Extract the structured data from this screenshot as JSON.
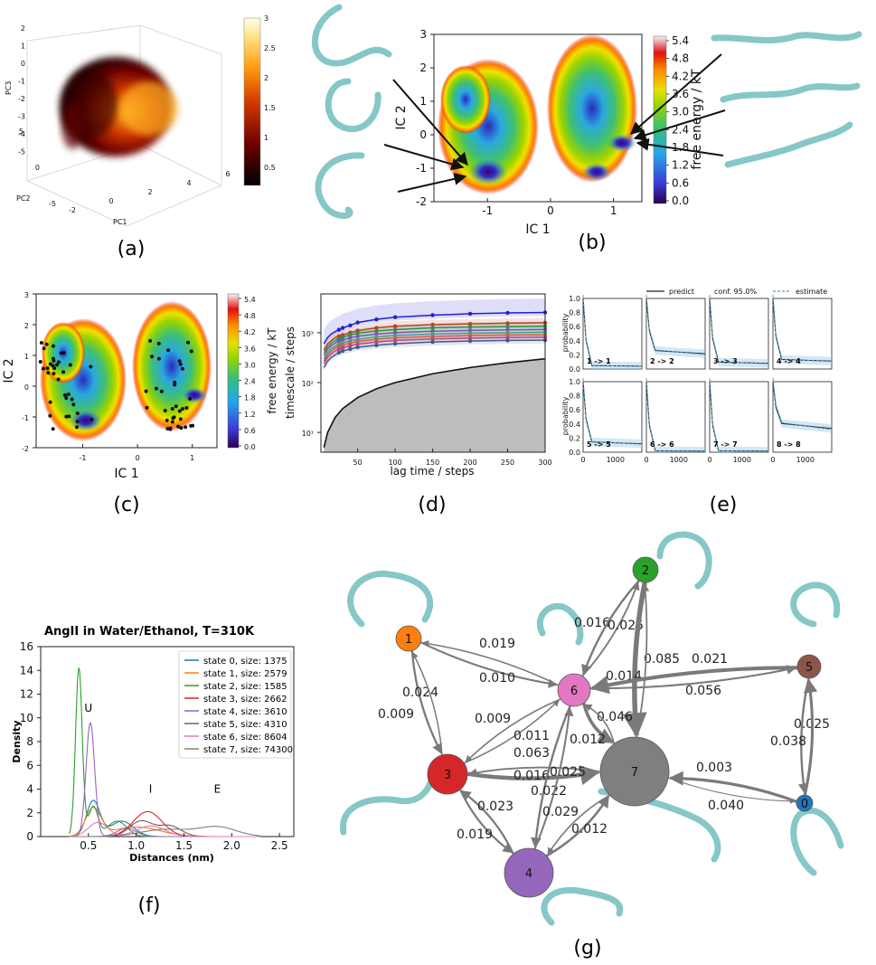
{
  "panel_labels": [
    "(a)",
    "(b)",
    "(c)",
    "(d)",
    "(e)",
    "(f)",
    "(g)"
  ],
  "colors": {
    "fes_scale": [
      "#2a0050",
      "#3b3bd8",
      "#22a7e8",
      "#35c07a",
      "#93d400",
      "#e8e000",
      "#ff8a00",
      "#e01010",
      "#ffffff"
    ],
    "afmhot": [
      "#000000",
      "#6e0000",
      "#d43a00",
      "#ff9a10",
      "#ffe080",
      "#ffffe8"
    ]
  },
  "chart_data": [
    {
      "id": "a",
      "type": "scatter",
      "xlabel": "PC1",
      "ylabel": "PC2",
      "zlabel": "PC3",
      "x_ticks": [
        "-2",
        "0",
        "2",
        "4",
        "6"
      ],
      "y_ticks": [
        "-5",
        "0",
        "5"
      ],
      "z_ticks": [
        "2",
        "1",
        "0",
        "-1",
        "-2",
        "-3",
        "-4",
        "-5"
      ],
      "colorbar_ticks": [
        "3",
        "2.5",
        "2",
        "1.5",
        "1",
        "0.5"
      ],
      "colorbar_range": [
        0.2,
        3
      ]
    },
    {
      "id": "b",
      "type": "heatmap",
      "xlabel": "IC 1",
      "ylabel": "IC 2",
      "x_ticks": [
        "-1",
        "0",
        "1"
      ],
      "y_ticks": [
        "3",
        "2",
        "1",
        "0",
        "-1",
        "-2"
      ],
      "xlim": [
        -1.85,
        1.45
      ],
      "ylim": [
        -2,
        3
      ],
      "colorbar_label": "free energy / kT",
      "colorbar_ticks": [
        "5.4",
        "4.8",
        "4.2",
        "3.6",
        "3.0",
        "2.4",
        "1.8",
        "1.2",
        "0.6",
        "0.0"
      ],
      "minima": [
        {
          "x": -1.05,
          "y": -1.15,
          "depth": 0.9
        },
        {
          "x": -1.4,
          "y": 0.1,
          "depth": 0.8
        },
        {
          "x": 1.15,
          "y": -0.3,
          "depth": 1.0
        },
        {
          "x": 0.5,
          "y": 0.6,
          "depth": 0.85
        },
        {
          "x": 0.8,
          "y": -1.2,
          "depth": 0.8
        }
      ]
    },
    {
      "id": "c",
      "type": "heatmap",
      "xlabel": "IC 1",
      "ylabel": "IC 2",
      "x_ticks": [
        "-1",
        "0",
        "1"
      ],
      "y_ticks": [
        "3",
        "2",
        "1",
        "0",
        "-1",
        "-2"
      ],
      "xlim": [
        -1.85,
        1.45
      ],
      "ylim": [
        -2,
        3
      ],
      "colorbar_label": "free energy / kT",
      "colorbar_ticks": [
        "5.4",
        "4.8",
        "4.2",
        "3.6",
        "3.0",
        "2.4",
        "1.8",
        "1.2",
        "0.6",
        "0.0"
      ]
    },
    {
      "id": "d",
      "type": "line",
      "xlabel": "lag time / steps",
      "ylabel": "timescale / steps",
      "x_ticks": [
        "50",
        "100",
        "150",
        "200",
        "250",
        "300"
      ],
      "y_ticks": [
        "10³",
        "10²",
        "10¹"
      ],
      "yscale": "log",
      "xlim": [
        1,
        300
      ],
      "ylim": [
        4,
        6000
      ],
      "x": [
        5,
        10,
        15,
        20,
        25,
        30,
        40,
        50,
        75,
        100,
        150,
        200,
        250,
        300
      ],
      "series": [
        {
          "values": [
            600,
            800,
            950,
            1050,
            1150,
            1250,
            1400,
            1600,
            1850,
            2050,
            2250,
            2400,
            2500,
            2550
          ]
        },
        {
          "values": [
            450,
            600,
            700,
            800,
            850,
            900,
            1000,
            1100,
            1250,
            1350,
            1450,
            1500,
            1550,
            1580
          ]
        },
        {
          "values": [
            400,
            520,
            620,
            700,
            760,
            820,
            900,
            980,
            1080,
            1150,
            1250,
            1300,
            1320,
            1350
          ]
        },
        {
          "values": [
            350,
            460,
            550,
            620,
            680,
            720,
            790,
            850,
            940,
            1000,
            1070,
            1110,
            1140,
            1160
          ]
        },
        {
          "values": [
            300,
            400,
            480,
            540,
            590,
            630,
            690,
            740,
            820,
            880,
            940,
            980,
            1000,
            1020
          ]
        },
        {
          "values": [
            270,
            360,
            430,
            490,
            530,
            570,
            620,
            670,
            740,
            790,
            840,
            880,
            900,
            910
          ]
        },
        {
          "values": [
            240,
            320,
            380,
            430,
            470,
            500,
            550,
            590,
            650,
            700,
            750,
            780,
            800,
            810
          ]
        },
        {
          "values": [
            200,
            270,
            320,
            360,
            400,
            430,
            470,
            510,
            560,
            600,
            650,
            680,
            700,
            710
          ]
        }
      ],
      "ref_line": {
        "x": [
          5,
          10,
          20,
          30,
          50,
          75,
          100,
          150,
          200,
          250,
          300
        ],
        "values": [
          5,
          10,
          20,
          30,
          50,
          75,
          100,
          150,
          200,
          250,
          300
        ]
      }
    },
    {
      "id": "e",
      "type": "line",
      "legend": [
        "predict",
        "conf. 95.0%",
        "estimate"
      ],
      "ylabel": "probability",
      "y_ticks": [
        "1.0",
        "0.8",
        "0.6",
        "0.4",
        "0.2",
        "0.0"
      ],
      "x_ticks": [
        "0",
        "1000"
      ],
      "ylim": [
        0,
        1
      ],
      "subplots": [
        {
          "label": "1 -> 1",
          "plateau": 0.05
        },
        {
          "label": "2 -> 2",
          "plateau": 0.27
        },
        {
          "label": "3 -> 3",
          "plateau": 0.1
        },
        {
          "label": "4 -> 4",
          "plateau": 0.14
        },
        {
          "label": "5 -> 5",
          "plateau": 0.15
        },
        {
          "label": "6 -> 6",
          "plateau": 0.02
        },
        {
          "label": "7 -> 7",
          "plateau": 0.02
        },
        {
          "label": "8 -> 8",
          "plateau": 0.42
        }
      ]
    },
    {
      "id": "f",
      "type": "line",
      "title": "AngII in Water/Ethanol, T=310K",
      "xlabel": "Distances (nm)",
      "ylabel": "Density",
      "x_ticks": [
        "0.5",
        "1.0",
        "1.5",
        "2.0",
        "2.5"
      ],
      "y_ticks": [
        "0",
        "2",
        "4",
        "6",
        "8",
        "10",
        "12",
        "14",
        "16"
      ],
      "xlim": [
        0,
        2.65
      ],
      "ylim": [
        0,
        16
      ],
      "annotations": [
        {
          "text": "U",
          "x": 0.5,
          "y": 10.5
        },
        {
          "text": "I",
          "x": 1.15,
          "y": 3.7
        },
        {
          "text": "E",
          "x": 1.85,
          "y": 3.7
        }
      ],
      "series": [
        {
          "name": "state 0, size: 1375",
          "color": "#1f77b4",
          "peaks": [
            [
              0.55,
              3.0,
              0.07
            ],
            [
              0.85,
              1.3,
              0.12
            ]
          ]
        },
        {
          "name": "state 1, size: 2579",
          "color": "#ff7f0e",
          "peaks": [
            [
              0.55,
              2.3,
              0.08
            ],
            [
              1.0,
              0.8,
              0.25
            ]
          ]
        },
        {
          "name": "state 2, size: 1585",
          "color": "#2ca02c",
          "peaks": [
            [
              0.4,
              14.2,
              0.035
            ],
            [
              0.55,
              2.5,
              0.05
            ],
            [
              0.8,
              1.3,
              0.1
            ]
          ]
        },
        {
          "name": "state 3, size: 2662",
          "color": "#d62728",
          "peaks": [
            [
              1.12,
              2.1,
              0.15
            ]
          ]
        },
        {
          "name": "state 4, size: 3610",
          "color": "#9467bd",
          "peaks": [
            [
              0.52,
              9.6,
              0.045
            ],
            [
              0.9,
              0.7,
              0.1
            ]
          ]
        },
        {
          "name": "state 5, size: 4310",
          "color": "#8c564b",
          "peaks": [
            [
              1.05,
              1.3,
              0.12
            ],
            [
              1.35,
              0.9,
              0.12
            ]
          ]
        },
        {
          "name": "state 6, size: 8604",
          "color": "#e377c2",
          "peaks": [
            [
              0.6,
              1.2,
              0.1
            ],
            [
              1.15,
              0.9,
              0.15
            ]
          ]
        },
        {
          "name": "state 7, size: 74300",
          "color": "#7f7f7f",
          "peaks": [
            [
              1.3,
              0.6,
              0.25
            ],
            [
              1.85,
              0.8,
              0.2
            ]
          ]
        }
      ]
    },
    {
      "id": "g",
      "type": "diagram",
      "nodes": [
        {
          "id": "0",
          "color": "#2277b4"
        },
        {
          "id": "1",
          "color": "#ff7f0e"
        },
        {
          "id": "2",
          "color": "#2ca02c"
        },
        {
          "id": "3",
          "color": "#d62728"
        },
        {
          "id": "4",
          "color": "#9467bd"
        },
        {
          "id": "5",
          "color": "#8c564b"
        },
        {
          "id": "6",
          "color": "#e377c2"
        },
        {
          "id": "7",
          "color": "#7f7f7f"
        }
      ],
      "edges": [
        {
          "from": "1",
          "to": "6",
          "label": "0.019"
        },
        {
          "from": "6",
          "to": "1",
          "label": "0.010"
        },
        {
          "from": "1",
          "to": "3",
          "label": "0.024"
        },
        {
          "from": "3",
          "to": "1",
          "label": "0.009"
        },
        {
          "from": "6",
          "to": "2",
          "label": "0.016"
        },
        {
          "from": "2",
          "to": "6",
          "label": "0.025"
        },
        {
          "from": "6",
          "to": "5",
          "label": "0.021"
        },
        {
          "from": "2",
          "to": "7",
          "label": "0.085"
        },
        {
          "from": "7",
          "to": "2",
          "label": "0.014"
        },
        {
          "from": "5",
          "to": "6",
          "label": "0.056"
        },
        {
          "from": "5",
          "to": "0",
          "label": "0.025"
        },
        {
          "from": "0",
          "to": "5",
          "label": "0.038"
        },
        {
          "from": "3",
          "to": "6",
          "label": "0.009"
        },
        {
          "from": "6",
          "to": "3",
          "label": "0.011"
        },
        {
          "from": "3",
          "to": "7",
          "label": "0.063"
        },
        {
          "from": "6",
          "to": "7",
          "label": "0.046"
        },
        {
          "from": "7",
          "to": "6",
          "label": "0.012"
        },
        {
          "from": "7",
          "to": "3",
          "label": "0.016"
        },
        {
          "from": "6",
          "to": "4",
          "label": "0.025"
        },
        {
          "from": "3",
          "to": "4",
          "label": "0.022"
        },
        {
          "from": "4",
          "to": "3",
          "label": "0.023"
        },
        {
          "from": "4",
          "to": "6",
          "label": "0.019"
        },
        {
          "from": "4",
          "to": "7",
          "label": "0.029"
        },
        {
          "from": "7",
          "to": "4",
          "label": "0.012"
        },
        {
          "from": "7",
          "to": "0",
          "label": "0.003"
        },
        {
          "from": "0",
          "to": "7",
          "label": "0.040"
        }
      ]
    }
  ]
}
